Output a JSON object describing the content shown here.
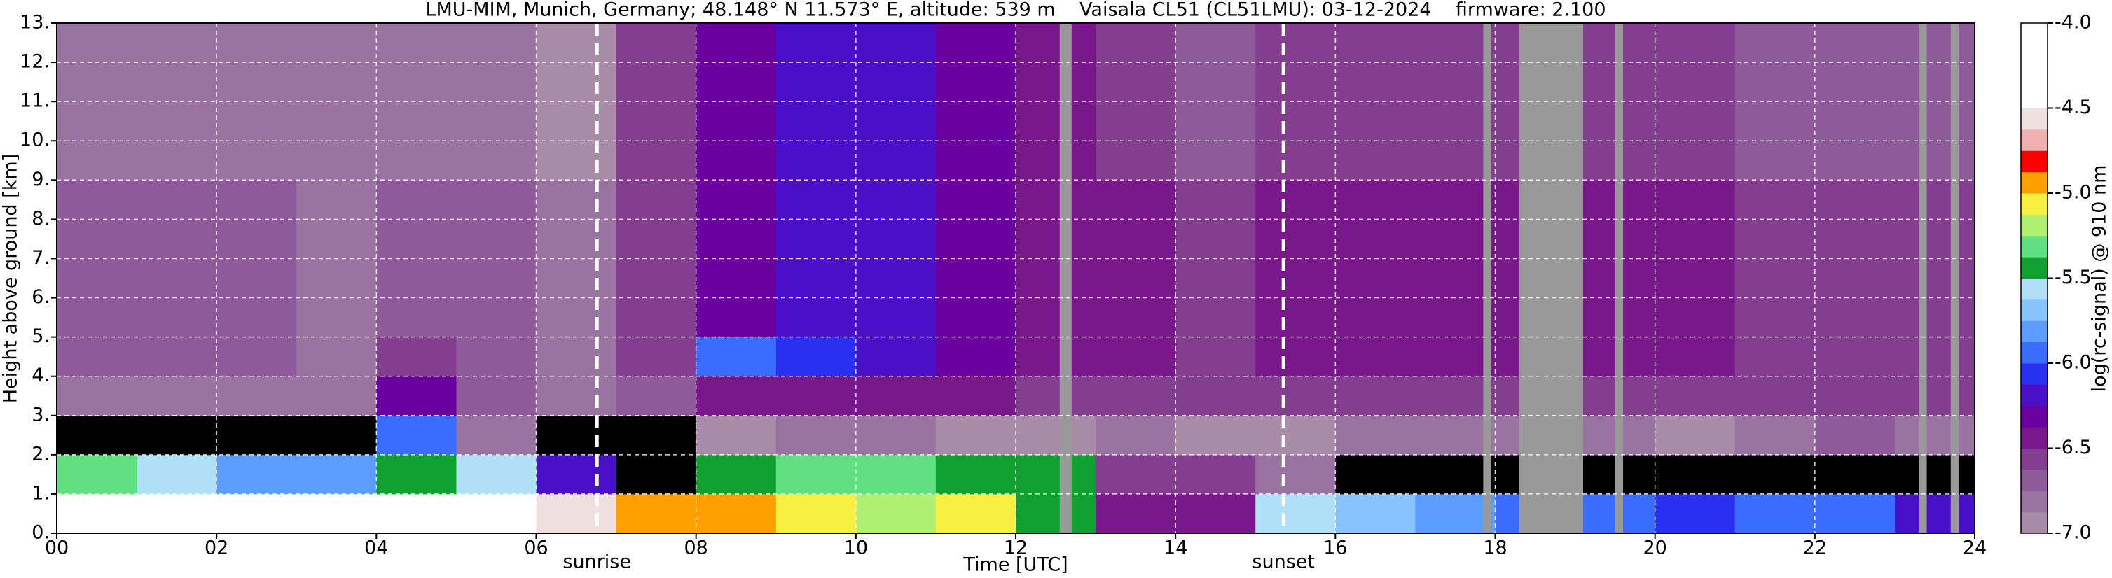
{
  "chart_data": {
    "type": "heatmap",
    "title": "LMU-MIM, Munich, Germany; 48.148° N 11.573° E, altitude: 539 m    Vaisala CL51 (CL51LMU): 03-12-2024    firmware: 2.100",
    "xlabel": "Time [UTC]",
    "ylabel": "Height above ground [km]",
    "xlim": [
      0,
      24
    ],
    "ylim": [
      0,
      13
    ],
    "xticks": [
      {
        "value": 0,
        "label": "00"
      },
      {
        "value": 2,
        "label": "02"
      },
      {
        "value": 4,
        "label": "04"
      },
      {
        "value": 6,
        "label": "06"
      },
      {
        "value": 8,
        "label": "08"
      },
      10,
      12,
      14,
      16,
      18,
      20,
      22,
      24
    ],
    "yticks": [
      {
        "value": 0,
        "label": "0."
      },
      {
        "value": 1,
        "label": "1."
      },
      {
        "value": 2,
        "label": "2."
      },
      {
        "value": 3,
        "label": "3."
      },
      {
        "value": 4,
        "label": "4."
      },
      {
        "value": 5,
        "label": "5."
      },
      {
        "value": 6,
        "label": "6."
      },
      {
        "value": 7,
        "label": "7."
      },
      {
        "value": 8,
        "label": "8."
      },
      {
        "value": 9,
        "label": "9."
      },
      {
        "value": 10,
        "label": "10."
      },
      {
        "value": 11,
        "label": "11."
      },
      {
        "value": 12,
        "label": "12."
      },
      {
        "value": 13,
        "label": "13."
      }
    ],
    "grid": true,
    "x_edges": [
      0,
      1,
      2,
      3,
      4,
      5,
      6,
      7,
      8,
      9,
      10,
      11,
      12,
      13,
      14,
      15,
      16,
      17,
      18,
      19,
      20,
      21,
      22,
      23,
      24
    ],
    "y_edges": [
      0,
      1,
      2,
      3,
      4,
      5,
      6,
      7,
      8,
      9,
      10,
      11,
      12,
      13
    ],
    "z": [
      [
        -4.3,
        -4.3,
        -4.4,
        -4.4,
        -4.3,
        -4.4,
        -4.6,
        -4.9,
        -5.0,
        -5.1,
        -5.2,
        -5.1,
        -5.4,
        -6.4,
        -6.4,
        -5.6,
        -5.7,
        -5.8,
        -6.0,
        -6.0,
        -6.1,
        -6.0,
        -6.0,
        -6.2
      ],
      [
        -5.3,
        -5.6,
        -5.8,
        -5.8,
        -5.5,
        -5.6,
        -6.2,
        -7.5,
        -5.4,
        -5.3,
        -5.3,
        -5.4,
        -5.5,
        -6.6,
        -6.6,
        -6.8,
        -7.2,
        -7.3,
        -7.3,
        -7.5,
        -7.5,
        -7.5,
        -7.5,
        -7.5
      ],
      [
        -7.5,
        -7.5,
        -7.5,
        -7.5,
        -5.9,
        -6.8,
        -7.2,
        -7.5,
        -6.9,
        -6.8,
        -6.8,
        -6.9,
        -6.9,
        -6.8,
        -6.9,
        -6.9,
        -6.8,
        -6.8,
        -6.8,
        -6.8,
        -6.9,
        -6.8,
        -6.7,
        -6.8
      ],
      [
        -6.8,
        -6.8,
        -6.8,
        -6.8,
        -6.3,
        -6.7,
        -6.8,
        -6.7,
        -6.5,
        -6.4,
        -6.4,
        -6.5,
        -6.6,
        -6.6,
        -6.6,
        -6.6,
        -6.6,
        -6.6,
        -6.6,
        -6.6,
        -6.6,
        -6.6,
        -6.6,
        -6.6
      ],
      [
        -6.7,
        -6.7,
        -6.7,
        -6.8,
        -6.6,
        -6.7,
        -6.8,
        -6.6,
        -5.9,
        -6.1,
        -6.2,
        -6.3,
        -6.4,
        -6.5,
        -6.6,
        -6.5,
        -6.5,
        -6.5,
        -6.5,
        -6.5,
        -6.5,
        -6.6,
        -6.6,
        -6.6
      ],
      [
        -6.7,
        -6.7,
        -6.7,
        -6.8,
        -6.7,
        -6.7,
        -6.8,
        -6.6,
        -6.3,
        -6.2,
        -6.2,
        -6.3,
        -6.4,
        -6.5,
        -6.6,
        -6.5,
        -6.5,
        -6.5,
        -6.5,
        -6.5,
        -6.5,
        -6.6,
        -6.6,
        -6.6
      ],
      [
        -6.7,
        -6.7,
        -6.7,
        -6.8,
        -6.7,
        -6.7,
        -6.8,
        -6.6,
        -6.3,
        -6.2,
        -6.2,
        -6.3,
        -6.4,
        -6.5,
        -6.6,
        -6.5,
        -6.5,
        -6.5,
        -6.5,
        -6.5,
        -6.5,
        -6.6,
        -6.6,
        -6.6
      ],
      [
        -6.7,
        -6.7,
        -6.7,
        -6.8,
        -6.7,
        -6.7,
        -6.8,
        -6.6,
        -6.3,
        -6.2,
        -6.2,
        -6.3,
        -6.4,
        -6.5,
        -6.6,
        -6.5,
        -6.5,
        -6.5,
        -6.5,
        -6.5,
        -6.5,
        -6.6,
        -6.6,
        -6.6
      ],
      [
        -6.7,
        -6.7,
        -6.7,
        -6.8,
        -6.7,
        -6.7,
        -6.8,
        -6.6,
        -6.3,
        -6.2,
        -6.2,
        -6.3,
        -6.4,
        -6.5,
        -6.6,
        -6.5,
        -6.5,
        -6.5,
        -6.5,
        -6.5,
        -6.5,
        -6.6,
        -6.6,
        -6.6
      ],
      [
        -6.8,
        -6.8,
        -6.8,
        -6.8,
        -6.8,
        -6.8,
        -6.9,
        -6.6,
        -6.3,
        -6.2,
        -6.2,
        -6.3,
        -6.5,
        -6.6,
        -6.7,
        -6.6,
        -6.6,
        -6.6,
        -6.6,
        -6.6,
        -6.6,
        -6.7,
        -6.7,
        -6.7
      ],
      [
        -6.8,
        -6.8,
        -6.8,
        -6.8,
        -6.8,
        -6.8,
        -6.9,
        -6.6,
        -6.3,
        -6.2,
        -6.2,
        -6.3,
        -6.5,
        -6.6,
        -6.7,
        -6.6,
        -6.6,
        -6.6,
        -6.6,
        -6.6,
        -6.6,
        -6.7,
        -6.7,
        -6.7
      ],
      [
        -6.8,
        -6.8,
        -6.8,
        -6.8,
        -6.8,
        -6.8,
        -6.9,
        -6.6,
        -6.3,
        -6.2,
        -6.2,
        -6.3,
        -6.5,
        -6.6,
        -6.7,
        -6.6,
        -6.6,
        -6.6,
        -6.6,
        -6.6,
        -6.6,
        -6.7,
        -6.7,
        -6.7
      ],
      [
        -6.8,
        -6.8,
        -6.8,
        -6.8,
        -6.8,
        -6.8,
        -6.9,
        -6.6,
        -6.3,
        -6.2,
        -6.2,
        -6.3,
        -6.5,
        -6.6,
        -6.7,
        -6.6,
        -6.6,
        -6.6,
        -6.6,
        -6.6,
        -6.6,
        -6.7,
        -6.7,
        -6.7
      ]
    ],
    "colorbar": {
      "label": "log(rc-signal) @ 910 nm",
      "lim": [
        -7,
        -4
      ],
      "ticks": [
        {
          "value": -4,
          "label": "-4.0"
        },
        -4.5,
        {
          "value": -5,
          "label": "-5.0"
        },
        -5.5,
        {
          "value": -6,
          "label": "-6.0"
        },
        -6.5,
        {
          "value": -7,
          "label": "-7.0"
        }
      ],
      "bounds": [
        -7,
        -6.875,
        -6.75,
        -6.625,
        -6.5,
        -6.375,
        -6.25,
        -6.125,
        -6,
        -5.875,
        -5.75,
        -5.625,
        -5.5,
        -5.375,
        -5.25,
        -5.125,
        -5,
        -4.875,
        -4.75,
        -4.625,
        -4.5,
        -4.375,
        -4.25,
        -4.125,
        -4
      ],
      "colors": [
        "#a88ca8",
        "#9a74a0",
        "#8e5a9a",
        "#843e90",
        "#78188a",
        "#6a00a0",
        "#4a10c8",
        "#2a30f0",
        "#3a6cff",
        "#5c9cff",
        "#88c4ff",
        "#b0e0f8",
        "#10a030",
        "#60e080",
        "#b0f070",
        "#f8f040",
        "#ffa000",
        "#ff0000",
        "#f0b0b0",
        "#f0e0e0",
        "#ffffff",
        "#ffffff",
        "#ffffff",
        "#ffffff"
      ],
      "under_color": "#000000"
    },
    "missing_data": {
      "color": "#999999",
      "intervals": [
        [
          12.55,
          12.7
        ],
        [
          17.85,
          17.95
        ],
        [
          18.3,
          19.1
        ],
        [
          19.5,
          19.6
        ],
        [
          23.3,
          23.4
        ],
        [
          23.7,
          23.8
        ]
      ]
    },
    "annotations": [
      {
        "text": "sunrise",
        "x": 6.76
      },
      {
        "text": "sunset",
        "x": 15.35
      }
    ]
  }
}
